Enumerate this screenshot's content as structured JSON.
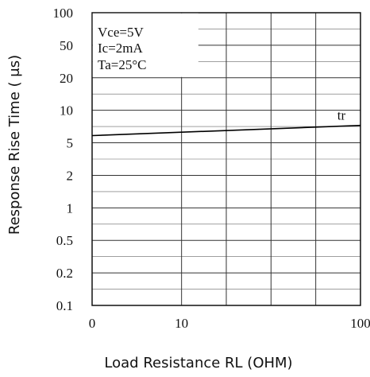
{
  "chart_data": {
    "type": "line",
    "title": "",
    "xlabel": "Load Resistance RL (OHM)",
    "ylabel": "Response Rise Time ( μs)",
    "x_tick_labels": [
      "0",
      "10",
      "100"
    ],
    "y_tick_labels": [
      "100",
      "50",
      "20",
      "10",
      "5",
      "2",
      "1",
      "0.5",
      "0.2",
      "0.1"
    ],
    "ylim": [
      0.1,
      100
    ],
    "yscale": "log",
    "grid": true,
    "conditions": [
      "Vce=5V",
      "Ic=2mA",
      "Ta=25°C"
    ],
    "series": [
      {
        "name": "tr",
        "x": [
          1,
          100
        ],
        "y": [
          5.5,
          7.0
        ]
      }
    ]
  }
}
